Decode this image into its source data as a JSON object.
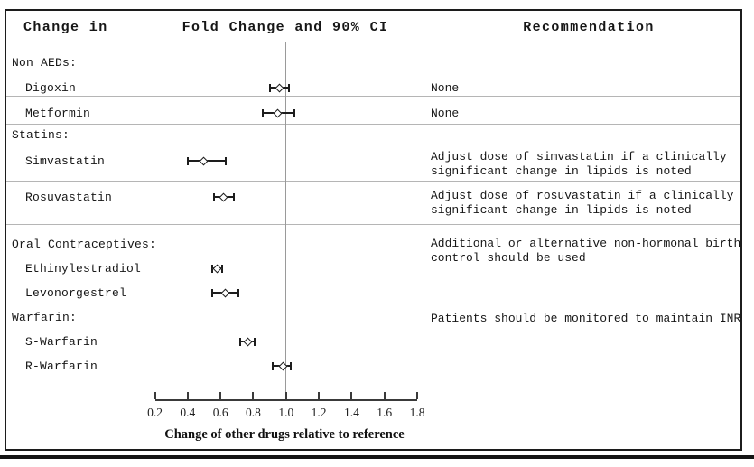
{
  "figure": {
    "headers": {
      "col1": "Change in",
      "col2": "Fold Change and 90% CI",
      "col3": "Recommendation"
    }
  },
  "left_column": [
    {
      "label": "Non AEDs:",
      "type": "section"
    },
    {
      "label": "Digoxin",
      "type": "drug"
    },
    {
      "label": "Metformin",
      "type": "drug"
    },
    {
      "label": "Statins:",
      "type": "section"
    },
    {
      "label": "Simvastatin",
      "type": "drug"
    },
    {
      "label": "Rosuvastatin",
      "type": "drug"
    },
    {
      "label": "Oral Contraceptives:",
      "type": "section"
    },
    {
      "label": "Ethinylestradiol",
      "type": "drug"
    },
    {
      "label": "Levonorgestrel",
      "type": "drug"
    },
    {
      "label": "Warfarin:",
      "type": "section"
    },
    {
      "label": "S-Warfarin",
      "type": "drug"
    },
    {
      "label": "R-Warfarin",
      "type": "drug"
    }
  ],
  "recommendations": [
    {
      "for": "Digoxin",
      "text": "None"
    },
    {
      "for": "Metformin",
      "text": "None"
    },
    {
      "for": "Simvastatin",
      "text": "Adjust dose of simvastatin if a clinically significant change in lipids is noted"
    },
    {
      "for": "Rosuvastatin",
      "text": "Adjust dose of rosuvastatin if a clinically significant change in lipids is noted"
    },
    {
      "for": "Oral Contraceptives",
      "text": "Additional or alternative non-hormonal birth control should be used"
    },
    {
      "for": "Warfarin",
      "text": "Patients should be monitored to maintain INR"
    }
  ],
  "chart_data": {
    "type": "scatter",
    "subtype": "forest-plot",
    "title": "Fold Change and 90% CI",
    "xlabel": "Change of other drugs relative to reference",
    "ylabel": "",
    "xlim": [
      0.2,
      1.8
    ],
    "x_ticks": [
      0.2,
      0.4,
      0.6,
      0.8,
      1.0,
      1.2,
      1.4,
      1.6,
      1.8
    ],
    "reference_line_x": 1.0,
    "ci_level": "90%",
    "grid": false,
    "points": [
      {
        "drug": "Digoxin",
        "value": 0.96,
        "ci_low": 0.9,
        "ci_high": 1.02
      },
      {
        "drug": "Metformin",
        "value": 0.95,
        "ci_low": 0.86,
        "ci_high": 1.05
      },
      {
        "drug": "Simvastatin",
        "value": 0.5,
        "ci_low": 0.4,
        "ci_high": 0.63
      },
      {
        "drug": "Rosuvastatin",
        "value": 0.62,
        "ci_low": 0.56,
        "ci_high": 0.68
      },
      {
        "drug": "Ethinylestradiol",
        "value": 0.58,
        "ci_low": 0.55,
        "ci_high": 0.61
      },
      {
        "drug": "Levonorgestrel",
        "value": 0.63,
        "ci_low": 0.55,
        "ci_high": 0.71
      },
      {
        "drug": "S-Warfarin",
        "value": 0.77,
        "ci_low": 0.72,
        "ci_high": 0.81
      },
      {
        "drug": "R-Warfarin",
        "value": 0.98,
        "ci_low": 0.92,
        "ci_high": 1.03
      }
    ]
  },
  "colors": {
    "border": "#1c1c1c",
    "separator": "#b5b5b5",
    "reference_line": "#9a9a9a",
    "axis": "#3a3a3a",
    "marker": "#1d1d1d",
    "background": "#ffffff"
  }
}
